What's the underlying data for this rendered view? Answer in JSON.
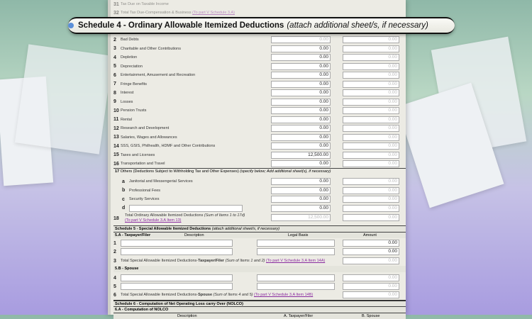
{
  "prev": {
    "row31": {
      "num": "31",
      "label": "Tax Due on Taxable Income"
    },
    "row32": {
      "num": "32",
      "label": "Total Tax Due-Compensation & Business",
      "link": "(To part V Schedule 3.A)"
    }
  },
  "schedule4": {
    "title": "Schedule 4 - Ordinary Allowable Itemized Deductions",
    "note": "(attach additional sheet/s, if necessary)",
    "items": [
      {
        "num": "2",
        "label": "Bad Debts",
        "a": "0.00",
        "b": "0.00"
      },
      {
        "num": "3",
        "label": "Charitable and Other Contributions",
        "a": "0.00",
        "b": "0.00"
      },
      {
        "num": "4",
        "label": "Depletion",
        "a": "0.00",
        "b": "0.00"
      },
      {
        "num": "5",
        "label": "Depreciation",
        "a": "0.00",
        "b": "0.00"
      },
      {
        "num": "6",
        "label": "Entertainment, Amusement and Recreation",
        "a": "0.00",
        "b": "0.00"
      },
      {
        "num": "7",
        "label": "Fringe Benefits",
        "a": "0.00",
        "b": "0.00"
      },
      {
        "num": "8",
        "label": "Interest",
        "a": "0.00",
        "b": "0.00"
      },
      {
        "num": "9",
        "label": "Losses",
        "a": "0.00",
        "b": "0.00"
      },
      {
        "num": "10",
        "label": "Pension Trusts",
        "a": "0.00",
        "b": "0.00"
      },
      {
        "num": "11",
        "label": "Rental",
        "a": "0.00",
        "b": "0.00"
      },
      {
        "num": "12",
        "label": "Research and Development",
        "a": "0.00",
        "b": "0.00"
      },
      {
        "num": "13",
        "label": "Salaries, Wages and Allowances",
        "a": "0.00",
        "b": "0.00"
      },
      {
        "num": "14",
        "label": "SSS, GSIS, Philhealth, HDMF and Other Contributions",
        "a": "0.00",
        "b": "0.00"
      },
      {
        "num": "15",
        "label": "Taxes and Licenses",
        "a": "12,500.00",
        "b": "0.00"
      },
      {
        "num": "16",
        "label": "Transportation and Travel",
        "a": "0.00",
        "b": "0.00"
      }
    ],
    "item17": {
      "num": "17",
      "label": "Others (Deductions Subject to Withholding Tax and Other Expenses)",
      "note": "(specify below; Add additional sheet(s), if necessary)"
    },
    "others": [
      {
        "letter": "a",
        "label": "Janitorial and Messengerial Services",
        "a": "0.00",
        "b": "0.00"
      },
      {
        "letter": "b",
        "label": "Professional Fees",
        "a": "0.00",
        "b": "0.00"
      },
      {
        "letter": "c",
        "label": "Security Services",
        "a": "0.00",
        "b": "0.00"
      },
      {
        "letter": "d",
        "label": "",
        "a": "0.00",
        "b": "0.00"
      }
    ],
    "total": {
      "num": "18",
      "label": "Total Ordinary Allowable Itemized Deductions",
      "note": "(Sum of Items 1 to 17d)",
      "link": "(To part V Schedule 3.A Item 13)",
      "a": "12,500.00",
      "b": "0.00"
    }
  },
  "schedule5": {
    "title": "Schedule 5 - Special Allowable Itemized Deductions",
    "note": "(attach additional sheet/s, if necessary)",
    "colA": "5.A - Taxpayer/Filer",
    "colDesc": "Description",
    "colLegal": "Legal Basis",
    "colAmt": "Amount",
    "rows": [
      {
        "num": "1",
        "amount": "0.00"
      },
      {
        "num": "2",
        "amount": "0.00"
      }
    ],
    "total3": {
      "num": "3",
      "label": "Total Special Allowable Itemized Deductions-",
      "bold": "Taxpayer/Filer",
      "note": "(Sum of Items 1 and 2)",
      "link": "(To part V Schedule 3.A Item 14A)",
      "amount": "0.00"
    },
    "spouse": "5.B - Spouse",
    "rows2": [
      {
        "num": "4",
        "amount": "0.00"
      },
      {
        "num": "5",
        "amount": "0.00"
      }
    ],
    "total6": {
      "num": "6",
      "label": "Total Special Allowable Itemized Deductions-",
      "bold": "Spouse",
      "note": "(Sum of Items 4 and 5)",
      "link": "(To part V Schedule 3.A Item 14B)",
      "amount": "0.00"
    }
  },
  "schedule6": {
    "title": "Schedule 6 - Computation of Net Operating Loss carry Over (NOLCO)",
    "sub": "6.A - Computation of NOLCO",
    "colDesc": "Description",
    "colA": "A. Taxpayer/Filer",
    "colB": "B. Spouse"
  }
}
